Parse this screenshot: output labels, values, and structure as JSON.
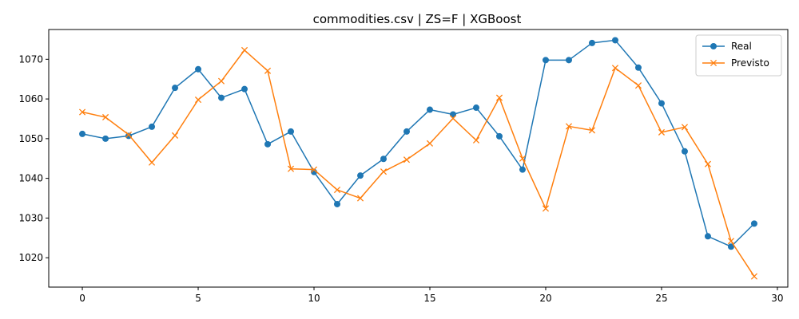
{
  "chart_data": {
    "type": "line",
    "title": "commodities.csv | ZS=F | XGBoost",
    "xlabel": "",
    "ylabel": "",
    "xlim": [
      -1.45,
      30.45
    ],
    "ylim": [
      1012.6,
      1077.5
    ],
    "xticks": [
      0,
      5,
      10,
      15,
      20,
      25,
      30
    ],
    "yticks": [
      1020,
      1030,
      1040,
      1050,
      1060,
      1070
    ],
    "grid": false,
    "legend_position": "top-right",
    "x": [
      0,
      1,
      2,
      3,
      4,
      5,
      6,
      7,
      8,
      9,
      10,
      11,
      12,
      13,
      14,
      15,
      16,
      17,
      18,
      19,
      20,
      21,
      22,
      23,
      24,
      25,
      26,
      27,
      28,
      29
    ],
    "series": [
      {
        "name": "Real",
        "color": "#1f77b4",
        "marker": "circle",
        "values": [
          1051.2,
          1050.0,
          1050.7,
          1053.0,
          1062.8,
          1067.5,
          1060.3,
          1062.5,
          1048.6,
          1051.8,
          1041.6,
          1033.5,
          1040.7,
          1044.9,
          1051.8,
          1057.3,
          1056.1,
          1057.8,
          1050.6,
          1042.2,
          1069.8,
          1069.8,
          1074.1,
          1074.8,
          1067.9,
          1058.9,
          1046.8,
          1025.4,
          1022.8,
          1028.6
        ]
      },
      {
        "name": "Previsto",
        "color": "#ff7f0e",
        "marker": "x",
        "values": [
          1056.7,
          1055.4,
          1051.0,
          1044.0,
          1050.8,
          1059.8,
          1064.5,
          1072.3,
          1067.1,
          1042.4,
          1042.2,
          1037.1,
          1035.0,
          1041.7,
          1044.7,
          1048.8,
          1055.1,
          1049.6,
          1060.3,
          1045.0,
          1032.4,
          1053.1,
          1052.1,
          1067.8,
          1063.4,
          1051.6,
          1052.9,
          1043.6,
          1024.2,
          1015.3
        ]
      }
    ]
  }
}
